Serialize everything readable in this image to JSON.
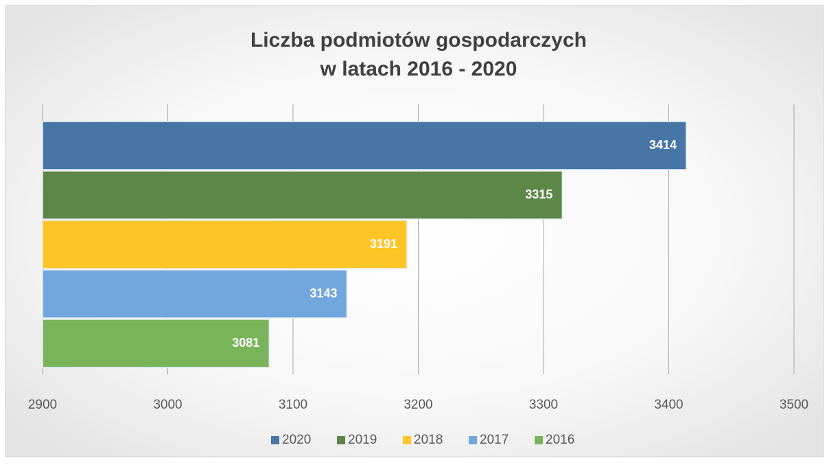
{
  "chart_data": {
    "type": "bar",
    "orientation": "horizontal",
    "title": [
      "Liczba podmiotów gospodarczych",
      "w latach 2016 - 2020"
    ],
    "series": [
      {
        "name": "2020",
        "color": "#4675a6",
        "values": [
          3414
        ]
      },
      {
        "name": "2019",
        "color": "#5d8649",
        "values": [
          3315
        ]
      },
      {
        "name": "2018",
        "color": "#ffc425",
        "values": [
          3191
        ]
      },
      {
        "name": "2017",
        "color": "#71a7dc",
        "values": [
          3143
        ]
      },
      {
        "name": "2016",
        "color": "#79b45a",
        "values": [
          3081
        ]
      }
    ],
    "xlim": [
      2900,
      3500
    ],
    "xticks": [
      2900,
      3000,
      3100,
      3200,
      3300,
      3400,
      3500
    ],
    "grid": true,
    "legend": "bottom"
  }
}
